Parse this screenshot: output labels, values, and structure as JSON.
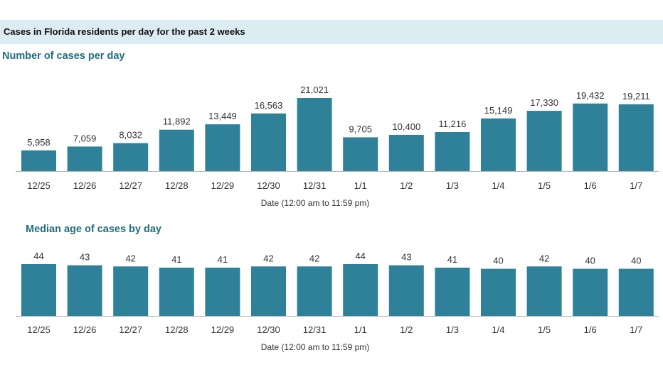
{
  "header": {
    "title": "Cases in Florida residents per day for the past 2 weeks"
  },
  "colors": {
    "bar": "#2e8198",
    "header_bg": "#dcecf3",
    "section_title": "#1f6e80",
    "axis": "#b5b5b5"
  },
  "charts": {
    "cases_title": "Number of cases per day",
    "age_title": "Median age of cases by day"
  },
  "chart_data": [
    {
      "type": "bar",
      "title": "Number of cases per day",
      "xlabel": "Date (12:00 am to 11:59 pm)",
      "ylabel": "",
      "categories": [
        "12/25",
        "12/26",
        "12/27",
        "12/28",
        "12/29",
        "12/30",
        "12/31",
        "1/1",
        "1/2",
        "1/3",
        "1/4",
        "1/5",
        "1/6",
        "1/7"
      ],
      "values": [
        5958,
        7059,
        8032,
        11892,
        13449,
        16563,
        21021,
        9705,
        10400,
        11216,
        15149,
        17330,
        19432,
        19211
      ],
      "value_labels": [
        "5,958",
        "7,059",
        "8,032",
        "11,892",
        "13,449",
        "16,563",
        "21,021",
        "9,705",
        "10,400",
        "11,216",
        "15,149",
        "17,330",
        "19,432",
        "19,211"
      ],
      "ylim": [
        0,
        21021
      ],
      "grid": false
    },
    {
      "type": "bar",
      "title": "Median age of cases by day",
      "xlabel": "Date (12:00 am to 11:59 pm)",
      "ylabel": "",
      "categories": [
        "12/25",
        "12/26",
        "12/27",
        "12/28",
        "12/29",
        "12/30",
        "12/31",
        "1/1",
        "1/2",
        "1/3",
        "1/4",
        "1/5",
        "1/6",
        "1/7"
      ],
      "values": [
        44,
        43,
        42,
        41,
        41,
        42,
        42,
        44,
        43,
        41,
        40,
        42,
        40,
        40
      ],
      "value_labels": [
        "44",
        "43",
        "42",
        "41",
        "41",
        "42",
        "42",
        "44",
        "43",
        "41",
        "40",
        "42",
        "40",
        "40"
      ],
      "ylim": [
        0,
        44
      ],
      "grid": false
    }
  ]
}
